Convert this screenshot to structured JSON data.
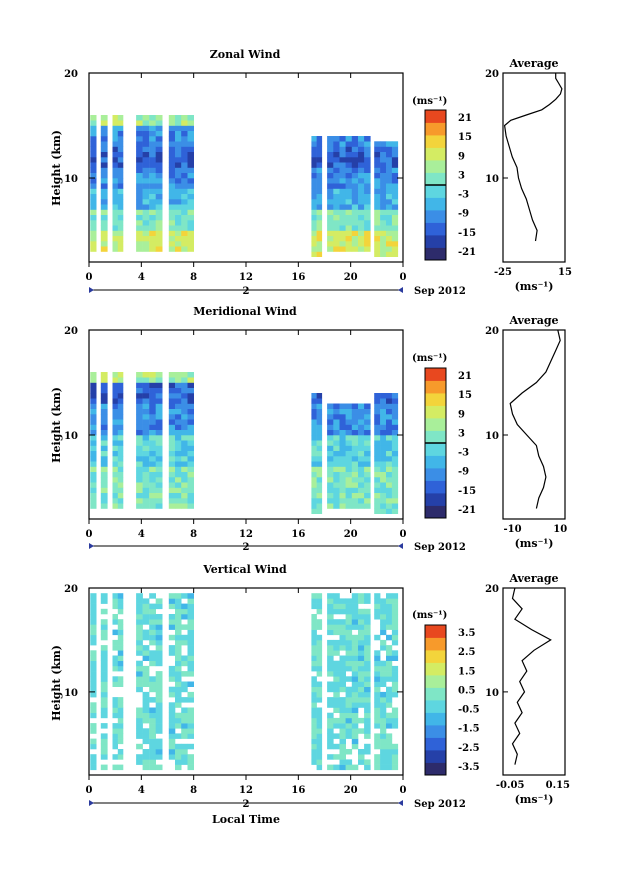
{
  "chart_data": [
    {
      "type": "heatmap",
      "title": "Zonal Wind",
      "ylabel": "Height (km)",
      "ylim": [
        2,
        20
      ],
      "yticks": [
        "20",
        "10"
      ],
      "xticks": [
        "0",
        "4",
        "8",
        "12",
        "16",
        "20",
        "0"
      ],
      "date_marker": "2",
      "date_label": "Sep 2012",
      "colorbar": {
        "unit": "(ms⁻¹)",
        "ticks": [
          "21",
          "15",
          "9",
          "3",
          "-3",
          "-9",
          "-15",
          "-21"
        ],
        "zero_contour": "0"
      },
      "profile": {
        "title": "Average",
        "yticks": [
          "20",
          "10"
        ],
        "xticks": [
          "-25",
          "15"
        ],
        "xlabel": "(ms⁻¹)",
        "xlim": [
          -25,
          15
        ],
        "points": [
          [
            -4,
            4
          ],
          [
            -3,
            5
          ],
          [
            -6,
            6
          ],
          [
            -8,
            7
          ],
          [
            -10,
            8
          ],
          [
            -13,
            9
          ],
          [
            -15,
            10
          ],
          [
            -16,
            11
          ],
          [
            -19,
            12
          ],
          [
            -21,
            13
          ],
          [
            -23,
            14
          ],
          [
            -24,
            15
          ],
          [
            -20,
            15.5
          ],
          [
            -10,
            16
          ],
          [
            0,
            16.5
          ],
          [
            5,
            17
          ],
          [
            9,
            17.5
          ],
          [
            12,
            18
          ],
          [
            13,
            18.5
          ],
          [
            11,
            19
          ],
          [
            9,
            19.5
          ],
          [
            9,
            20
          ]
        ]
      },
      "blocks": [
        {
          "t": [
            0.1,
            0.55
          ],
          "h": [
            3,
            16
          ]
        },
        {
          "t": [
            0.9,
            1.4
          ],
          "h": [
            3,
            16
          ]
        },
        {
          "t": [
            1.8,
            2.6
          ],
          "h": [
            3,
            16
          ]
        },
        {
          "t": [
            3.6,
            5.6
          ],
          "h": [
            3,
            16
          ]
        },
        {
          "t": [
            6.1,
            8.0
          ],
          "h": [
            3,
            16
          ]
        },
        {
          "t": [
            17.0,
            17.8
          ],
          "h": [
            2.5,
            14
          ]
        },
        {
          "t": [
            18.2,
            21.5
          ],
          "h": [
            3,
            14
          ]
        },
        {
          "t": [
            21.8,
            23.6
          ],
          "h": [
            2.5,
            13.5
          ]
        }
      ]
    },
    {
      "type": "heatmap",
      "title": "Meridional Wind",
      "ylabel": "Height (km)",
      "ylim": [
        2,
        20
      ],
      "yticks": [
        "20",
        "10"
      ],
      "xticks": [
        "0",
        "4",
        "8",
        "12",
        "16",
        "20",
        "0"
      ],
      "date_marker": "2",
      "date_label": "Sep 2012",
      "colorbar": {
        "unit": "(ms⁻¹)",
        "ticks": [
          "21",
          "15",
          "9",
          "3",
          "-3",
          "-9",
          "-15",
          "-21"
        ],
        "zero_contour": "0"
      },
      "profile": {
        "title": "Average",
        "yticks": [
          "20",
          "10"
        ],
        "xticks": [
          "-10",
          "10"
        ],
        "xlabel": "(ms⁻¹)",
        "xlim": [
          -14,
          12
        ],
        "points": [
          [
            0,
            3
          ],
          [
            1,
            4
          ],
          [
            3,
            5
          ],
          [
            4,
            6
          ],
          [
            3,
            7
          ],
          [
            1,
            8
          ],
          [
            0,
            9
          ],
          [
            -4,
            10
          ],
          [
            -8,
            11
          ],
          [
            -10,
            12
          ],
          [
            -11,
            13
          ],
          [
            -6,
            14
          ],
          [
            0,
            15
          ],
          [
            4,
            16
          ],
          [
            6,
            17
          ],
          [
            8,
            18
          ],
          [
            10,
            19
          ],
          [
            9,
            20
          ]
        ]
      },
      "blocks": [
        {
          "t": [
            0.1,
            0.55
          ],
          "h": [
            3,
            16
          ]
        },
        {
          "t": [
            0.9,
            1.4
          ],
          "h": [
            3,
            16
          ]
        },
        {
          "t": [
            1.8,
            2.6
          ],
          "h": [
            3,
            16
          ]
        },
        {
          "t": [
            3.6,
            5.6
          ],
          "h": [
            3,
            16
          ]
        },
        {
          "t": [
            6.1,
            8.0
          ],
          "h": [
            3,
            16
          ]
        },
        {
          "t": [
            17.0,
            17.8
          ],
          "h": [
            2.5,
            14
          ]
        },
        {
          "t": [
            18.2,
            21.5
          ],
          "h": [
            3,
            13
          ]
        },
        {
          "t": [
            21.8,
            23.6
          ],
          "h": [
            2.5,
            14
          ]
        }
      ]
    },
    {
      "type": "heatmap",
      "title": "Vertical Wind",
      "ylabel": "Height (km)",
      "ylim": [
        2,
        20
      ],
      "yticks": [
        "20",
        "10"
      ],
      "xticks": [
        "0",
        "4",
        "8",
        "12",
        "16",
        "20",
        "0"
      ],
      "date_marker": "2",
      "date_label": "Sep 2012",
      "xlabel": "Local Time",
      "colorbar": {
        "unit": "(ms⁻¹)",
        "ticks": [
          "3.5",
          "2.5",
          "1.5",
          "0.5",
          "-0.5",
          "-1.5",
          "-2.5",
          "-3.5"
        ]
      },
      "profile": {
        "title": "Average",
        "yticks": [
          "20",
          "10"
        ],
        "xticks": [
          "-0.05",
          "0.15"
        ],
        "xlabel": "(ms⁻¹)",
        "xlim": [
          -0.08,
          0.18
        ],
        "points": [
          [
            -0.03,
            3
          ],
          [
            -0.02,
            4
          ],
          [
            -0.04,
            5
          ],
          [
            -0.01,
            6
          ],
          [
            -0.03,
            7
          ],
          [
            0.0,
            8
          ],
          [
            -0.02,
            9
          ],
          [
            0.01,
            10
          ],
          [
            -0.01,
            11
          ],
          [
            0.02,
            12
          ],
          [
            0.0,
            13
          ],
          [
            0.05,
            14
          ],
          [
            0.12,
            15
          ],
          [
            0.04,
            16
          ],
          [
            -0.03,
            17
          ],
          [
            0.0,
            18
          ],
          [
            -0.04,
            19
          ],
          [
            -0.03,
            20
          ]
        ]
      },
      "blocks": [
        {
          "t": [
            0.1,
            0.55
          ],
          "h": [
            2.5,
            19.5
          ]
        },
        {
          "t": [
            0.9,
            1.4
          ],
          "h": [
            2.5,
            19.5
          ]
        },
        {
          "t": [
            1.8,
            2.6
          ],
          "h": [
            2.5,
            19.5
          ]
        },
        {
          "t": [
            3.6,
            5.6
          ],
          "h": [
            2.5,
            19.5
          ]
        },
        {
          "t": [
            6.1,
            8.0
          ],
          "h": [
            2.5,
            19.5
          ]
        },
        {
          "t": [
            17.0,
            17.8
          ],
          "h": [
            2.5,
            19.5
          ]
        },
        {
          "t": [
            18.2,
            21.5
          ],
          "h": [
            2.5,
            19.5
          ]
        },
        {
          "t": [
            21.8,
            23.6
          ],
          "h": [
            2.5,
            19.5
          ]
        }
      ]
    }
  ],
  "colors": {
    "scale": [
      "#2d2b6b",
      "#2540a8",
      "#2f62d8",
      "#3b8ee6",
      "#41b6e8",
      "#5ed6e0",
      "#7fe6c6",
      "#a9ef9a",
      "#d4ec63",
      "#f3d43b",
      "#f79a2b",
      "#e8481f"
    ]
  }
}
